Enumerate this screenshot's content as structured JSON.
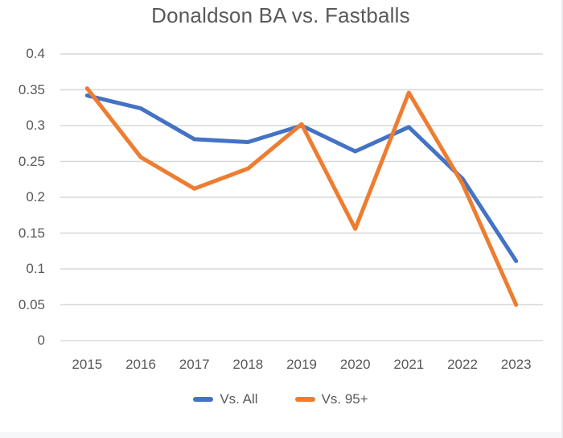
{
  "title": "Donaldson BA vs. Fastballs",
  "colors": {
    "vs_all_line": "#4472C4",
    "vs_95_line": "#ED7D31",
    "gridline": "#D8D8D8",
    "text": "#595959",
    "background": "#FFFFFF",
    "edge": "#F6F7F8"
  },
  "chart_data": {
    "type": "line",
    "title": "Donaldson BA vs. Fastballs",
    "categories": [
      "2015",
      "2016",
      "2017",
      "2018",
      "2019",
      "2020",
      "2021",
      "2022",
      "2023"
    ],
    "series": [
      {
        "name": "Vs. All",
        "color": "#4472C4",
        "values": [
          0.342,
          0.324,
          0.281,
          0.277,
          0.3,
          0.264,
          0.298,
          0.226,
          0.111
        ]
      },
      {
        "name": "Vs. 95+",
        "color": "#ED7D31",
        "values": [
          0.352,
          0.256,
          0.212,
          0.24,
          0.302,
          0.156,
          0.346,
          0.219,
          0.05
        ]
      }
    ],
    "xlabel": "",
    "ylabel": "",
    "ylim": [
      0,
      0.4
    ],
    "ytick_step": 0.05,
    "yticks": [
      "0.4",
      "0.35",
      "0.3",
      "0.25",
      "0.2",
      "0.15",
      "0.1",
      "0.05",
      "0"
    ],
    "grid": true,
    "vertical_grid": false,
    "legend_position": "bottom"
  },
  "legend": {
    "items": [
      {
        "label": "Vs. All"
      },
      {
        "label": "Vs. 95+"
      }
    ]
  }
}
